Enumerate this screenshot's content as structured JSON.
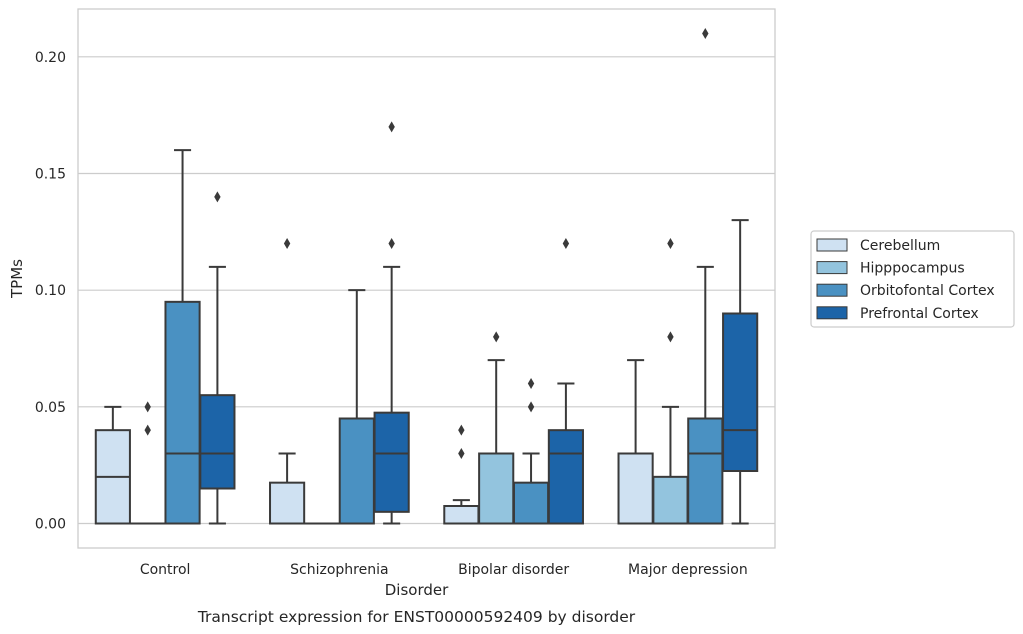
{
  "chart_data": {
    "type": "boxplot",
    "title": "",
    "caption": "Transcript expression for ENST00000592409 by disorder",
    "xlabel": "Disorder",
    "ylabel": "TPMs",
    "ylim": [
      -0.0105,
      0.2205
    ],
    "yticks": [
      "0.00",
      "0.05",
      "0.10",
      "0.15",
      "0.20"
    ],
    "ytick_values": [
      0,
      0.05,
      0.1,
      0.15,
      0.2
    ],
    "grid": true,
    "legend_position": "right",
    "categories": [
      "Control",
      "Schizophrenia",
      "Bipolar disorder",
      "Major depression"
    ],
    "series": [
      {
        "name": "Cerebellum",
        "color": "#cfe1f2",
        "boxes": [
          {
            "low": 0,
            "q1": 0,
            "median": 0.02,
            "q3": 0.04,
            "high": 0.05,
            "outliers": []
          },
          {
            "low": 0,
            "q1": 0,
            "median": 0,
            "q3": 0.0175,
            "high": 0.03,
            "outliers": [
              0.12
            ]
          },
          {
            "low": 0,
            "q1": 0,
            "median": 0,
            "q3": 0.0075,
            "high": 0.01,
            "outliers": [
              0.03,
              0.04
            ]
          },
          {
            "low": 0,
            "q1": 0,
            "median": 0,
            "q3": 0.03,
            "high": 0.07,
            "outliers": []
          }
        ]
      },
      {
        "name": "Hipppocampus",
        "color": "#93c4de",
        "boxes": [
          {
            "low": 0,
            "q1": 0,
            "median": 0,
            "q3": 0,
            "high": 0,
            "outliers": [
              0.04,
              0.05
            ]
          },
          {
            "low": 0,
            "q1": 0,
            "median": 0,
            "q3": 0,
            "high": 0,
            "outliers": []
          },
          {
            "low": 0,
            "q1": 0,
            "median": 0,
            "q3": 0.03,
            "high": 0.07,
            "outliers": [
              0.08
            ]
          },
          {
            "low": 0,
            "q1": 0,
            "median": 0,
            "q3": 0.02,
            "high": 0.05,
            "outliers": [
              0.08,
              0.12
            ]
          }
        ]
      },
      {
        "name": "Orbitofontal Cortex",
        "color": "#4a91c2",
        "boxes": [
          {
            "low": 0,
            "q1": 0,
            "median": 0.03,
            "q3": 0.095,
            "high": 0.16,
            "outliers": []
          },
          {
            "low": 0,
            "q1": 0,
            "median": 0,
            "q3": 0.045,
            "high": 0.1,
            "outliers": []
          },
          {
            "low": 0,
            "q1": 0,
            "median": 0,
            "q3": 0.0175,
            "high": 0.03,
            "outliers": [
              0.05,
              0.06
            ]
          },
          {
            "low": 0,
            "q1": 0,
            "median": 0.03,
            "q3": 0.045,
            "high": 0.11,
            "outliers": [
              0.21
            ]
          }
        ]
      },
      {
        "name": "Prefrontal Cortex",
        "color": "#1c64a8",
        "boxes": [
          {
            "low": 0,
            "q1": 0.015,
            "median": 0.03,
            "q3": 0.055,
            "high": 0.11,
            "outliers": [
              0.14
            ]
          },
          {
            "low": 0,
            "q1": 0.005,
            "median": 0.03,
            "q3": 0.0475,
            "high": 0.11,
            "outliers": [
              0.12,
              0.17
            ]
          },
          {
            "low": 0,
            "q1": 0,
            "median": 0.03,
            "q3": 0.04,
            "high": 0.06,
            "outliers": [
              0.12
            ]
          },
          {
            "low": 0,
            "q1": 0.0225,
            "median": 0.04,
            "q3": 0.09,
            "high": 0.13,
            "outliers": []
          }
        ]
      }
    ]
  }
}
